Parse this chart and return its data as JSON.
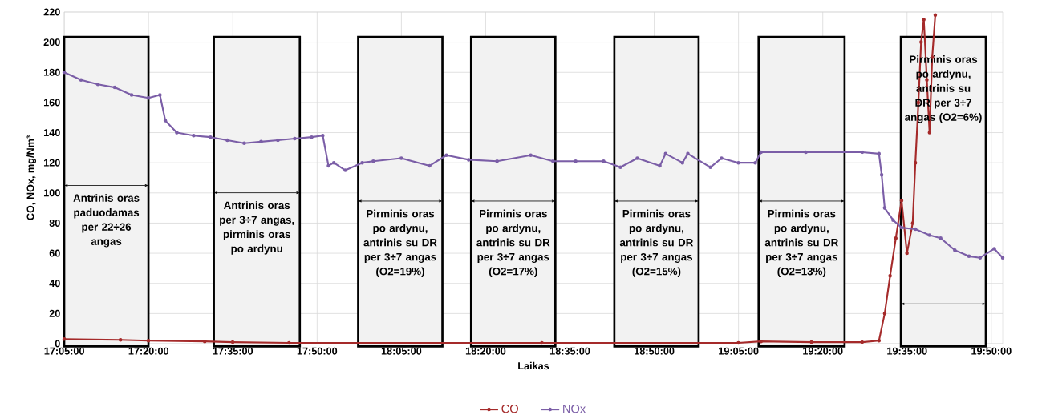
{
  "chart_data": {
    "type": "line",
    "xlabel": "Laikas",
    "ylabel": "CO, NOx, mg/Nm³",
    "xlim": [
      17.083,
      19.867
    ],
    "ylim": [
      0,
      220
    ],
    "xticks": [
      {
        "value": 17.0833,
        "label": "17:05:00"
      },
      {
        "value": 17.3333,
        "label": "17:20:00"
      },
      {
        "value": 17.5833,
        "label": "17:35:00"
      },
      {
        "value": 17.8333,
        "label": "17:50:00"
      },
      {
        "value": 18.0833,
        "label": "18:05:00"
      },
      {
        "value": 18.3333,
        "label": "18:20:00"
      },
      {
        "value": 18.5833,
        "label": "18:35:00"
      },
      {
        "value": 18.8333,
        "label": "18:50:00"
      },
      {
        "value": 19.0833,
        "label": "19:05:00"
      },
      {
        "value": 19.3333,
        "label": "19:20:00"
      },
      {
        "value": 19.5833,
        "label": "19:35:00"
      },
      {
        "value": 19.8333,
        "label": "19:50:00"
      }
    ],
    "yticks": [
      0,
      20,
      40,
      60,
      80,
      100,
      120,
      140,
      160,
      180,
      200,
      220
    ],
    "grid": true,
    "legend": "bottom",
    "marker": "circle",
    "series": [
      {
        "name": "CO",
        "color": "#a52a2a",
        "x": [
          17.083,
          17.25,
          17.333,
          17.5,
          17.583,
          17.75,
          18.5,
          19.083,
          19.15,
          19.3,
          19.45,
          19.5,
          19.517,
          19.533,
          19.55,
          19.567,
          19.583,
          19.6,
          19.608,
          19.617,
          19.625,
          19.633,
          19.642,
          19.65,
          19.658,
          19.667
        ],
        "values": [
          3,
          2.5,
          2,
          1.5,
          1,
          0.5,
          0.5,
          0.5,
          1.5,
          1,
          1,
          2,
          20,
          45,
          70,
          95,
          60,
          80,
          120,
          160,
          200,
          215,
          175,
          140,
          190,
          218
        ]
      },
      {
        "name": "NOx",
        "color": "#7b5ea7",
        "x": [
          17.083,
          17.133,
          17.183,
          17.233,
          17.283,
          17.333,
          17.367,
          17.383,
          17.417,
          17.467,
          17.517,
          17.567,
          17.617,
          17.667,
          17.717,
          17.767,
          17.817,
          17.85,
          17.867,
          17.883,
          17.917,
          17.967,
          18.0,
          18.083,
          18.167,
          18.217,
          18.283,
          18.367,
          18.467,
          18.533,
          18.6,
          18.683,
          18.733,
          18.783,
          18.85,
          18.867,
          18.917,
          18.933,
          19.0,
          19.033,
          19.083,
          19.133,
          19.15,
          19.283,
          19.45,
          19.5,
          19.508,
          19.517,
          19.542,
          19.567,
          19.608,
          19.65,
          19.683,
          19.725,
          19.767,
          19.8,
          19.842,
          19.867
        ],
        "values": [
          180,
          175,
          172,
          170,
          165,
          163,
          165,
          148,
          140,
          138,
          137,
          135,
          133,
          134,
          135,
          136,
          137,
          138,
          118,
          120,
          115,
          120,
          121,
          123,
          118,
          125,
          122,
          121,
          125,
          121,
          121,
          121,
          117,
          123,
          118,
          126,
          120,
          126,
          117,
          123,
          120,
          120,
          127,
          127,
          127,
          126,
          112,
          90,
          82,
          77,
          76,
          72,
          70,
          62,
          58,
          57,
          63,
          57
        ]
      }
    ],
    "bands": [
      {
        "axis": "x",
        "from": 17.083,
        "to": 17.333,
        "label": "Antrinis oras paduodamas per 22÷26 angas",
        "color": "#f2f2f2"
      },
      {
        "axis": "x",
        "from": 17.527,
        "to": 17.782,
        "label": "Antrinis oras per 3÷7 angas, pirminis oras po ardynu",
        "color": "#f2f2f2"
      },
      {
        "axis": "x",
        "from": 17.955,
        "to": 18.205,
        "label": "Pirminis oras po ardynu, antrinis su DR per 3÷7 angas (O2=19%)",
        "color": "#f2f2f2"
      },
      {
        "axis": "x",
        "from": 18.29,
        "to": 18.54,
        "label": "Pirminis oras po ardynu, antrinis su DR per 3÷7 angas (O2=17%)",
        "color": "#f2f2f2"
      },
      {
        "axis": "x",
        "from": 18.715,
        "to": 18.965,
        "label": "Pirminis oras po ardynu, antrinis su DR per 3÷7 angas (O2=15%)",
        "color": "#f2f2f2"
      },
      {
        "axis": "x",
        "from": 19.143,
        "to": 19.398,
        "label": "Pirminis oras po ardynu, antrinis su DR per 3÷7 angas (O2=13%)",
        "color": "#f2f2f2"
      },
      {
        "axis": "x",
        "from": 19.565,
        "to": 19.817,
        "label": "Pirminis oras po ardynu, antrinis su DR per 3÷7 angas (O2=6%)",
        "color": "#f2f2f2"
      }
    ]
  }
}
